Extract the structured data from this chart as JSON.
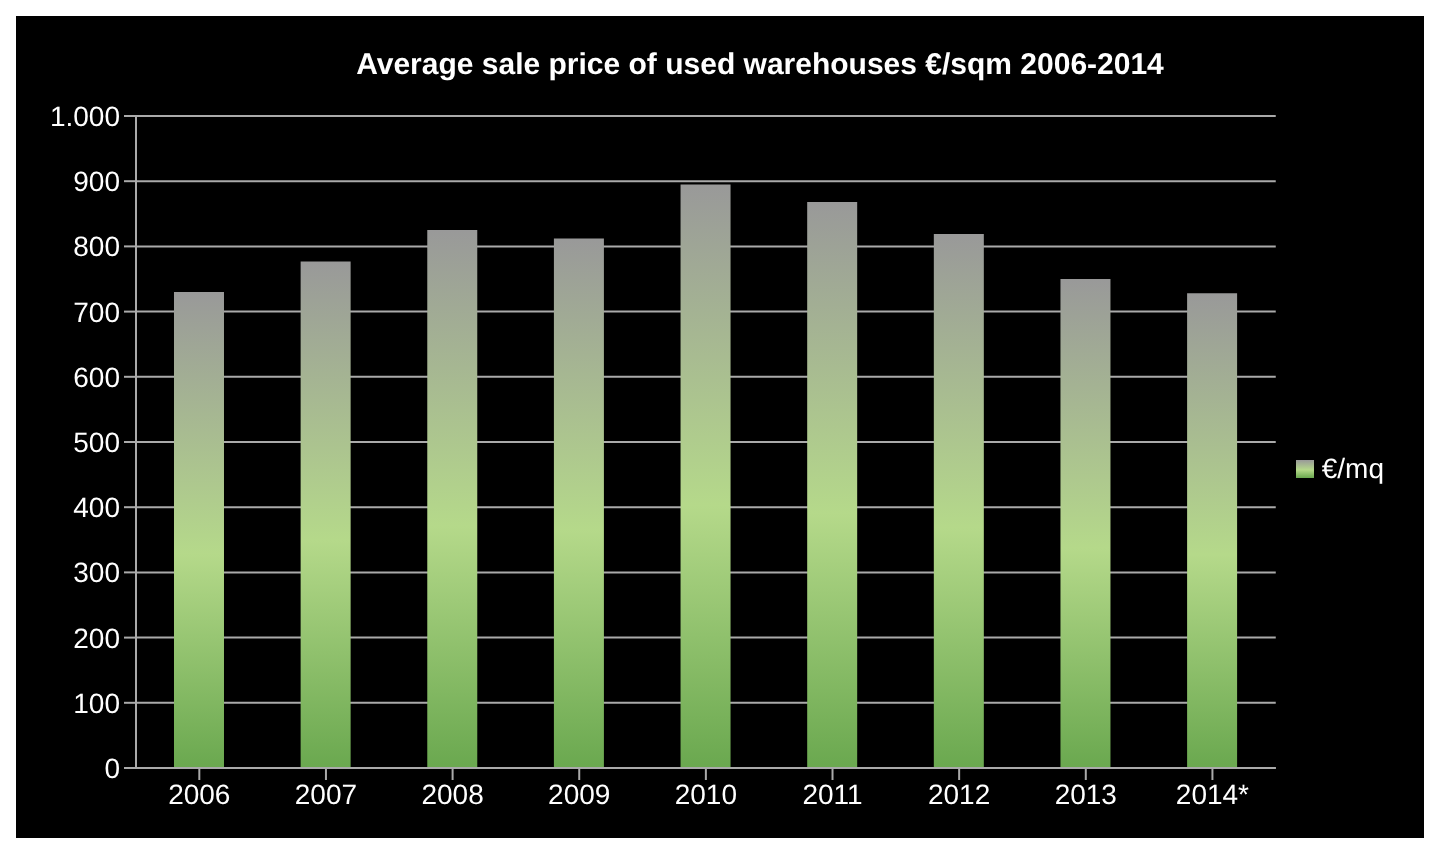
{
  "chart_data": {
    "type": "bar",
    "title": "Average sale price of used warehouses  €/sqm 2006-2014",
    "categories": [
      "2006",
      "2007",
      "2008",
      "2009",
      "2010",
      "2011",
      "2012",
      "2013",
      "2014*"
    ],
    "series": [
      {
        "name": "€/mq",
        "color": "#6aa84f",
        "values": [
          730,
          777,
          825,
          812,
          895,
          868,
          819,
          750,
          728
        ]
      }
    ],
    "ylim": [
      0,
      1000
    ],
    "yticks": [
      0,
      100,
      200,
      300,
      400,
      500,
      600,
      700,
      800,
      900,
      {
        "value": 1000,
        "label": "1.000"
      }
    ],
    "grid": "y",
    "legend": "right"
  }
}
